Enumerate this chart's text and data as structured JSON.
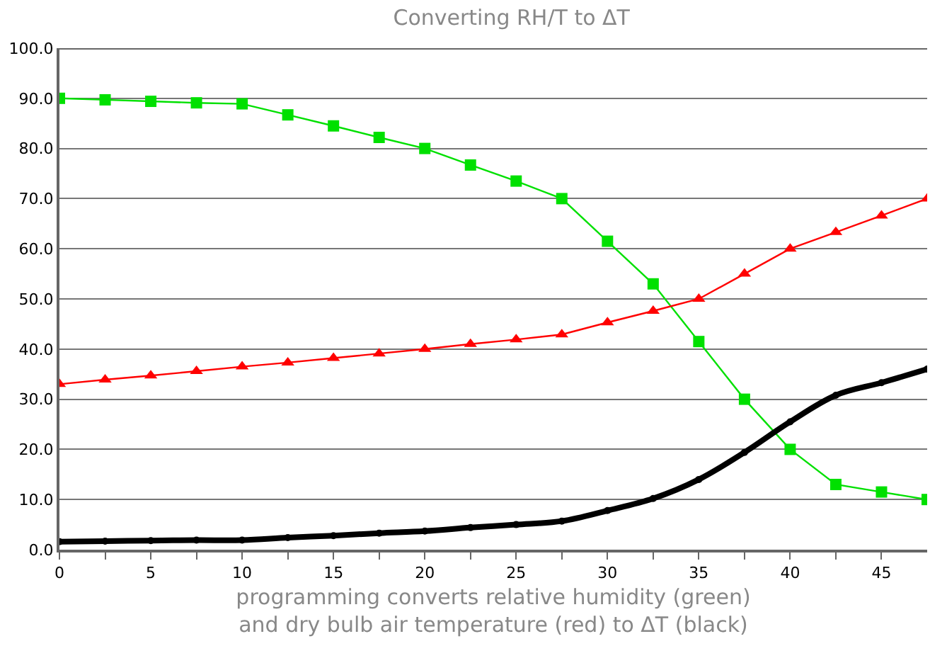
{
  "chart_data": {
    "type": "line",
    "title": "Converting RH/T to ΔT",
    "xlabel": "programming converts relative humidity (green)\nand dry bulb air temperature (red) to ΔT (black)",
    "x": [
      0,
      2.5,
      5,
      7.5,
      10,
      12.5,
      15,
      17.5,
      20,
      22.5,
      25,
      27.5,
      30,
      32.5,
      35,
      37.5,
      40,
      42.5,
      45,
      47.5
    ],
    "series": [
      {
        "color": "#00e000",
        "marker": "square",
        "values": [
          90,
          89.7,
          89.4,
          89.1,
          88.9,
          86.7,
          84.5,
          82.2,
          80,
          76.7,
          73.5,
          70,
          61.5,
          53,
          41.5,
          30,
          20,
          13,
          11.5,
          10
        ]
      },
      {
        "color": "#ff0000",
        "marker": "triangle",
        "values": [
          33,
          33.9,
          34.7,
          35.6,
          36.5,
          37.3,
          38.2,
          39.1,
          40,
          41,
          41.9,
          42.9,
          45.3,
          47.6,
          50,
          55,
          60,
          63.3,
          66.6,
          70
        ]
      },
      {
        "color": "#000000",
        "marker": "circle",
        "values": [
          1.6,
          1.7,
          1.8,
          1.9,
          1.9,
          2.4,
          2.8,
          3.3,
          3.7,
          4.4,
          5.0,
          5.7,
          7.8,
          10.2,
          14,
          19.4,
          25.5,
          30.8,
          33.3,
          36
        ]
      }
    ],
    "xlim": [
      0,
      47.5
    ],
    "xticks": [
      0,
      {
        "value": 2.5,
        "label": null
      },
      5,
      {
        "value": 7.5,
        "label": null
      },
      10,
      {
        "value": 12.5,
        "label": null
      },
      15,
      {
        "value": 17.5,
        "label": null
      },
      20,
      {
        "value": 22.5,
        "label": null
      },
      25,
      {
        "value": 27.5,
        "label": null
      },
      30,
      {
        "value": 32.5,
        "label": null
      },
      35,
      {
        "value": 37.5,
        "label": null
      },
      40,
      {
        "value": 42.5,
        "label": null
      },
      45
    ],
    "ylim": [
      0,
      100
    ],
    "yticks": [
      {
        "value": 0,
        "label": "0.0"
      },
      {
        "value": 10,
        "label": "10.0"
      },
      {
        "value": 20,
        "label": "20.0"
      },
      {
        "value": 30,
        "label": "30.0"
      },
      {
        "value": 40,
        "label": "40.0"
      },
      {
        "value": 50,
        "label": "50.0"
      },
      {
        "value": 60,
        "label": "60.0"
      },
      {
        "value": 70,
        "label": "70.0"
      },
      {
        "value": 80,
        "label": "80.0"
      },
      {
        "value": 90,
        "label": "90.0"
      },
      {
        "value": 100,
        "label": "100.0"
      }
    ],
    "grid": "y"
  }
}
